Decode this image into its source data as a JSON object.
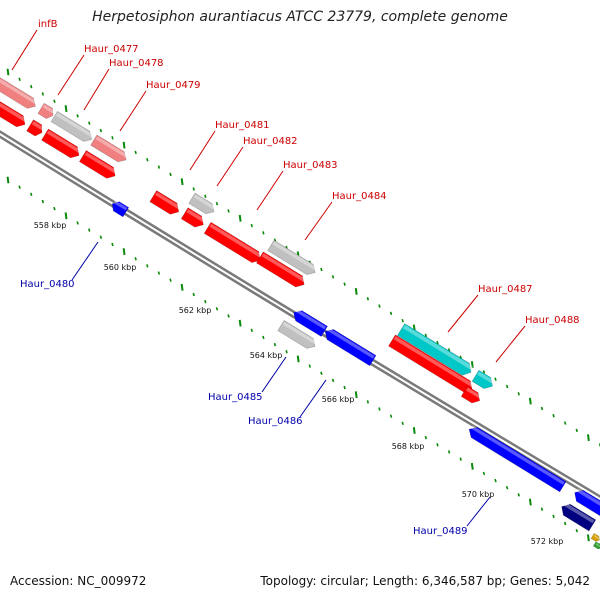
{
  "title": "Herpetosiphon aurantiacus ATCC 23779, complete genome",
  "footer": {
    "accession_label": "Accession: NC_009972",
    "stats_label": "Topology: circular; Length: 6,346,587 bp; Genes: 5,042"
  },
  "colors": {
    "forward_cds": "#ff0000",
    "forward_cds_other": "#f08080",
    "reverse_cds": "#0000ff",
    "reverse_cds_dark": "#000080",
    "pseudo_or_other": "#c0c0c0",
    "rna": "#00c8c8",
    "tick": "#0a8a0a",
    "backbone": "#9a9a9a"
  },
  "kbp_labels": [
    "558 kbp",
    "560 kbp",
    "562 kbp",
    "564 kbp",
    "566 kbp",
    "568 kbp",
    "570 kbp",
    "572 kbp"
  ],
  "gene_labels": {
    "infB": "infB",
    "haur_0477": "Haur_0477",
    "haur_0478": "Haur_0478",
    "haur_0479": "Haur_0479",
    "haur_0480": "Haur_0480",
    "haur_0481": "Haur_0481",
    "haur_0482": "Haur_0482",
    "haur_0483": "Haur_0483",
    "haur_0484": "Haur_0484",
    "haur_0485": "Haur_0485",
    "haur_0486": "Haur_0486",
    "haur_0487": "Haur_0487",
    "haur_0488": "Haur_0488",
    "haur_0489": "Haur_0489"
  }
}
